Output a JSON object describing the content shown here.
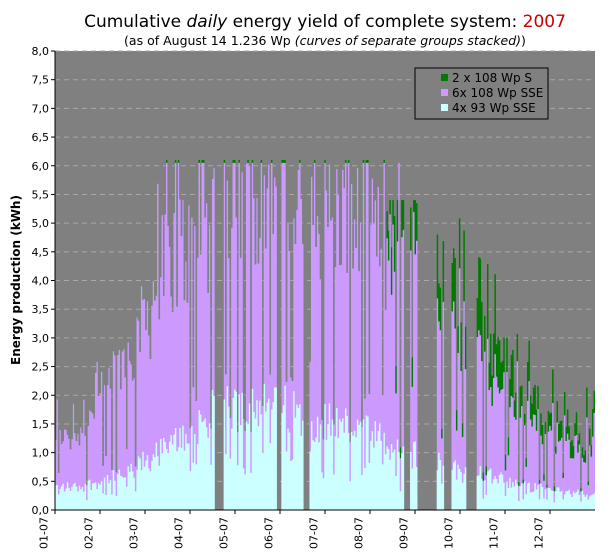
{
  "chart_data": {
    "type": "area",
    "title": {
      "prefix": "Cumulative ",
      "emph": "daily",
      "middle": " energy yield of complete system: ",
      "year": "2007"
    },
    "subtitle": {
      "main": "(as of August 14 1.236 Wp ",
      "emph": "(curves of separate groups stacked)",
      "end": ")"
    },
    "ylabel": "Energy production (kWh)",
    "ylim": [
      0,
      8
    ],
    "yticks": [
      "0,0",
      "0,5",
      "1,0",
      "1,5",
      "2,0",
      "2,5",
      "3,0",
      "3,5",
      "4,0",
      "4,5",
      "5,0",
      "5,5",
      "6,0",
      "6,5",
      "7,0",
      "7,5",
      "8,0"
    ],
    "x_categories": [
      "01-07",
      "02-07",
      "03-07",
      "04-07",
      "05-07",
      "06-07",
      "07-07",
      "08-07",
      "09-07",
      "10-07",
      "11-07",
      "12-07"
    ],
    "grid": true,
    "legend_position": "top-right",
    "series": [
      {
        "name": "2 x 108 Wp S",
        "color": "#007a00",
        "note": "present from mid-August onward (stacked on top)",
        "monthly_typical_peak": [
          0,
          0,
          0,
          0,
          0,
          0,
          0,
          0.9,
          1.2,
          1.1,
          0.4,
          0.3
        ]
      },
      {
        "name": "6x 108 Wp SSE",
        "color": "#cc99ff",
        "monthly_typical_peak": [
          0.9,
          2.0,
          3.2,
          3.5,
          3.8,
          3.6,
          3.5,
          3.4,
          3.0,
          2.0,
          1.1,
          0.8
        ]
      },
      {
        "name": "4x 93 Wp SSE",
        "color": "#ccffff",
        "monthly_typical_peak": [
          0.4,
          0.6,
          1.1,
          1.7,
          2.0,
          1.6,
          1.5,
          1.1,
          0.9,
          0.7,
          0.4,
          0.3
        ]
      }
    ]
  }
}
